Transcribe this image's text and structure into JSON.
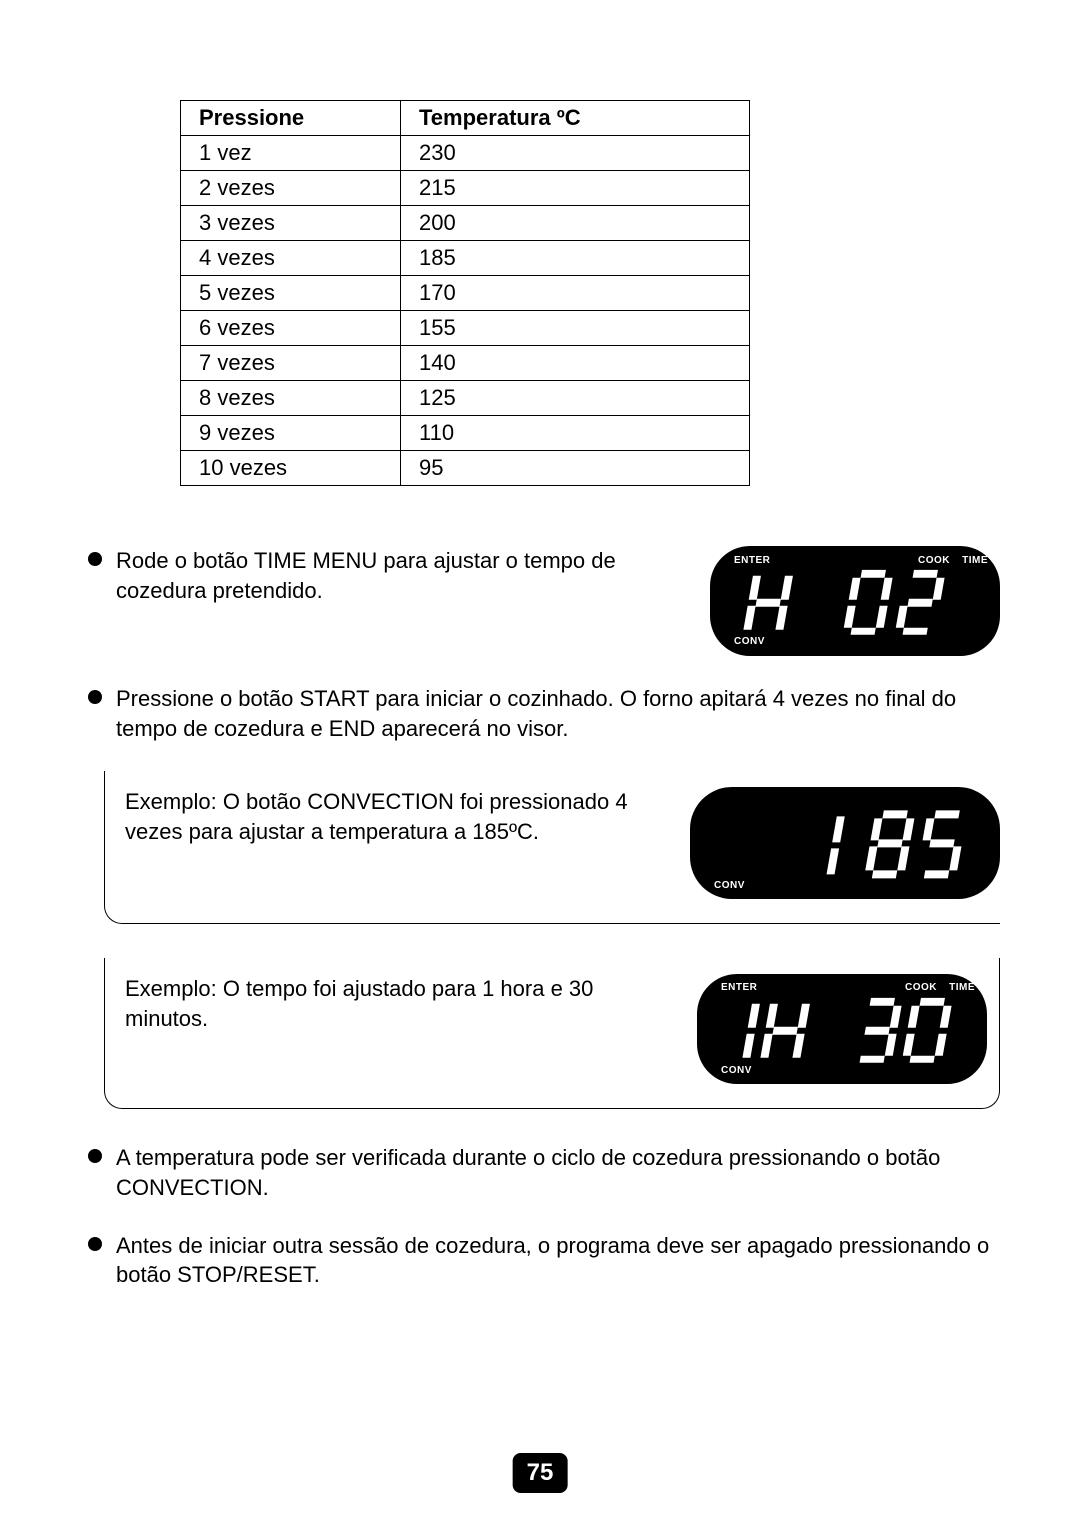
{
  "table": {
    "headers": [
      "Pressione",
      "Temperatura ºC"
    ],
    "rows": [
      [
        "1 vez",
        "230"
      ],
      [
        "2 vezes",
        "215"
      ],
      [
        "3 vezes",
        "200"
      ],
      [
        "4 vezes",
        "185"
      ],
      [
        "5 vezes",
        "170"
      ],
      [
        "6 vezes",
        "155"
      ],
      [
        "7 vezes",
        "140"
      ],
      [
        "8 vezes",
        "125"
      ],
      [
        "9 vezes",
        "110"
      ],
      [
        "10 vezes",
        "95"
      ]
    ],
    "border_color": "#000000",
    "header_fontweight": "bold",
    "fontsize": 22
  },
  "bullets": {
    "b1": "Rode o botão TIME MENU para ajustar o tempo de cozedura pretendido.",
    "b2": "Pressione o botão START para iniciar o cozinhado. O forno apitará 4 vezes no final do tempo de cozedura e END aparecerá no visor.",
    "b3": "A temperatura pode ser verificada durante o ciclo de cozedura pressionando o botão CONVECTION.",
    "b4": "Antes de iniciar outra sessão de cozedura, o programa deve ser apagado pressionando o botão STOP/RESET."
  },
  "examples": {
    "e1": "Exemplo: O botão CONVECTION foi pressionado 4 vezes para ajustar a temperatura a 185ºC.",
    "e2": "Exemplo: O tempo foi ajustado para 1 hora e 30 minutos."
  },
  "displays": {
    "d1": {
      "text": "H 02",
      "labels": {
        "enter": "ENTER",
        "cook": "COOK",
        "time": "TIME",
        "conv": "CONV"
      },
      "bg": "#000000",
      "fg": "#ffffff"
    },
    "d2": {
      "text": "1 85",
      "labels": {
        "conv": "CONV"
      },
      "bg": "#000000",
      "fg": "#ffffff"
    },
    "d3": {
      "text": "1H 30",
      "labels": {
        "enter": "ENTER",
        "cook": "COOK",
        "time": "TIME",
        "conv": "CONV"
      },
      "bg": "#000000",
      "fg": "#ffffff"
    }
  },
  "page_number": "75",
  "colors": {
    "page_bg": "#ffffff",
    "text": "#000000",
    "display_bg": "#000000",
    "display_fg": "#ffffff",
    "pagepill_bg": "#000000",
    "pagepill_fg": "#ffffff"
  }
}
